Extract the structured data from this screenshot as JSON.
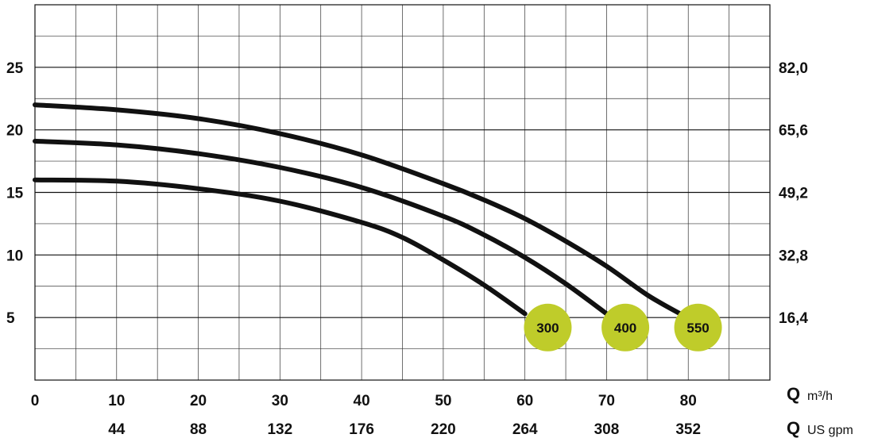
{
  "chart_data": {
    "type": "line",
    "title": "",
    "x_primary": {
      "symbol": "Q",
      "unit": "m³/h",
      "ticks": [
        0,
        10,
        20,
        30,
        40,
        50,
        60,
        70,
        80
      ],
      "range": [
        0,
        90
      ]
    },
    "x_secondary": {
      "symbol": "Q",
      "unit": "US gpm",
      "ticks": [
        "44",
        "88",
        "132",
        "176",
        "220",
        "264",
        "308",
        "352"
      ],
      "ticks_at_primary": [
        10,
        20,
        30,
        40,
        50,
        60,
        70,
        80
      ]
    },
    "y_left": {
      "ticks": [
        5,
        10,
        15,
        20,
        25
      ],
      "range": [
        0,
        30
      ]
    },
    "y_right": {
      "ticks": [
        "16,4",
        "32,8",
        "49,2",
        "65,6",
        "82,0"
      ],
      "ticks_at_left": [
        5,
        10,
        15,
        20,
        25
      ]
    },
    "grid": true,
    "colors": {
      "curve": "#111111",
      "badge": "#bfcc2a",
      "grid": "#333333"
    },
    "series": [
      {
        "badge": "300",
        "points": [
          [
            0,
            16
          ],
          [
            10,
            15.9
          ],
          [
            20,
            15.3
          ],
          [
            30,
            14.3
          ],
          [
            40,
            12.6
          ],
          [
            45,
            11.4
          ],
          [
            50,
            9.6
          ],
          [
            55,
            7.6
          ],
          [
            60,
            5.3
          ]
        ],
        "badge_at": [
          62.8,
          4.2
        ]
      },
      {
        "badge": "400",
        "points": [
          [
            0,
            19.1
          ],
          [
            10,
            18.8
          ],
          [
            20,
            18.1
          ],
          [
            30,
            17
          ],
          [
            40,
            15.4
          ],
          [
            50,
            13.1
          ],
          [
            55,
            11.6
          ],
          [
            60,
            9.8
          ],
          [
            65,
            7.7
          ],
          [
            70,
            5.3
          ]
        ],
        "badge_at": [
          72.3,
          4.2
        ]
      },
      {
        "badge": "550",
        "points": [
          [
            0,
            22
          ],
          [
            10,
            21.6
          ],
          [
            20,
            20.9
          ],
          [
            30,
            19.7
          ],
          [
            40,
            18
          ],
          [
            50,
            15.7
          ],
          [
            55,
            14.4
          ],
          [
            60,
            12.9
          ],
          [
            65,
            11.1
          ],
          [
            70,
            9.1
          ],
          [
            75,
            6.8
          ],
          [
            79,
            5.3
          ]
        ],
        "badge_at": [
          81.2,
          4.2
        ]
      }
    ]
  }
}
